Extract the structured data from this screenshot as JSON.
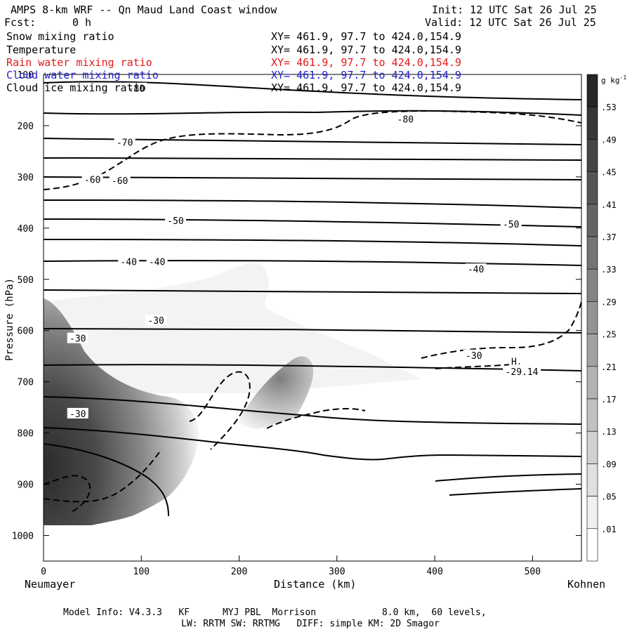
{
  "header": {
    "title": "AMPS 8-km WRF -- Qn Maud Land Coast window",
    "init": "Init: 12 UTC Sat 26 Jul 25",
    "fcst_label": "Fcst:",
    "fcst_value": "0 h",
    "valid": "Valid: 12 UTC Sat 26 Jul 25"
  },
  "fields": [
    {
      "name": "Snow mixing ratio",
      "xy": "XY= 461.9, 97.7 to 424.0,154.9",
      "color": "#000000"
    },
    {
      "name": "Temperature",
      "xy": "XY= 461.9, 97.7 to 424.0,154.9",
      "color": "#000000"
    },
    {
      "name": "Rain water mixing ratio",
      "xy": "XY= 461.9, 97.7 to 424.0,154.9",
      "color": "#e41a1c"
    },
    {
      "name": "Cloud water mixing ratio",
      "xy": "XY= 461.9, 97.7 to 424.0,154.9",
      "color": "#1f1fc8"
    },
    {
      "name": "Cloud ice mixing ratio",
      "xy": "XY= 461.9, 97.7 to 424.0,154.9",
      "color": "#000000"
    }
  ],
  "footer": {
    "line1": "Model Info: V4.3.3   KF      MYJ PBL  Morrison            8.0 km,  60 levels,",
    "line2": "LW: RRTM SW: RRTMG   DIFF: simple KM: 2D Smagor"
  },
  "chart_data": {
    "type": "cross-section",
    "xlabel": "Distance (km)",
    "ylabel": "Pressure (hPa)",
    "x_left_label": "Neumayer",
    "x_right_label": "Kohnen",
    "xlim": [
      0,
      550
    ],
    "ylim": [
      1050,
      100
    ],
    "x_ticks": [
      0,
      100,
      200,
      300,
      400,
      500
    ],
    "y_ticks": [
      100,
      200,
      300,
      400,
      500,
      600,
      700,
      800,
      900,
      1000
    ],
    "colorbar": {
      "unit": "g kg",
      "unit_exp": "-1",
      "levels": [
        ".53",
        ".49",
        ".45",
        ".41",
        ".37",
        ".33",
        ".29",
        ".25",
        ".21",
        ".17",
        ".13",
        ".09",
        ".05",
        ".01"
      ]
    },
    "temperature_labels": [
      {
        "text": "-80",
        "x": 95,
        "p": 127
      },
      {
        "text": "-80",
        "x": 370,
        "p": 187
      },
      {
        "text": "-70",
        "x": 83,
        "p": 232
      },
      {
        "text": "-60",
        "x": 50,
        "p": 305
      },
      {
        "text": "-60",
        "x": 78,
        "p": 307
      },
      {
        "text": "-50",
        "x": 135,
        "p": 385
      },
      {
        "text": "-50",
        "x": 478,
        "p": 392
      },
      {
        "text": "-40",
        "x": 87,
        "p": 465
      },
      {
        "text": "-40",
        "x": 116,
        "p": 465
      },
      {
        "text": "-40",
        "x": 442,
        "p": 480
      },
      {
        "text": "-30",
        "x": 115,
        "p": 580
      },
      {
        "text": "-30",
        "x": 35,
        "p": 615
      },
      {
        "text": "-30",
        "x": 440,
        "p": 648
      },
      {
        "text": "-30",
        "x": 35,
        "p": 762
      },
      {
        "text": "H",
        "x": 481,
        "p": 660
      },
      {
        "text": "-29.14",
        "x": 489,
        "p": 680
      }
    ]
  }
}
